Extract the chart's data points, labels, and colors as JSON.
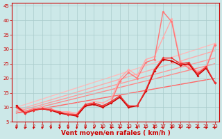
{
  "xlabel": "Vent moyen/en rafales ( km/h )",
  "bg_color": "#cce8e8",
  "grid_color": "#aacccc",
  "xlim": [
    -0.5,
    23.5
  ],
  "ylim": [
    5,
    46
  ],
  "yticks": [
    5,
    10,
    15,
    20,
    25,
    30,
    35,
    40,
    45
  ],
  "xticks": [
    0,
    1,
    2,
    3,
    4,
    5,
    6,
    7,
    8,
    9,
    10,
    11,
    12,
    13,
    14,
    15,
    16,
    17,
    18,
    19,
    20,
    21,
    22,
    23
  ],
  "lines": [
    {
      "x": [
        0,
        23
      ],
      "y": [
        10.0,
        32.0
      ],
      "color": "#ffbbbb",
      "lw": 1.0,
      "marker": null,
      "zorder": 1
    },
    {
      "x": [
        0,
        23
      ],
      "y": [
        9.0,
        29.5
      ],
      "color": "#ffaaaa",
      "lw": 1.0,
      "marker": null,
      "zorder": 1
    },
    {
      "x": [
        0,
        23
      ],
      "y": [
        8.5,
        27.0
      ],
      "color": "#ff9999",
      "lw": 1.0,
      "marker": null,
      "zorder": 1
    },
    {
      "x": [
        0,
        23
      ],
      "y": [
        8.0,
        25.0
      ],
      "color": "#ff8888",
      "lw": 1.0,
      "marker": null,
      "zorder": 1
    },
    {
      "x": [
        0,
        23
      ],
      "y": [
        8.0,
        20.0
      ],
      "color": "#ff6666",
      "lw": 1.0,
      "marker": null,
      "zorder": 1
    },
    {
      "x": [
        0,
        1,
        2,
        3,
        4,
        5,
        6,
        7,
        8,
        9,
        10,
        11,
        12,
        13,
        14,
        15,
        16,
        17,
        18,
        19,
        20,
        21,
        22,
        23
      ],
      "y": [
        10.5,
        8.5,
        9.5,
        10.0,
        9.5,
        8.5,
        8.5,
        8.0,
        11.0,
        12.0,
        11.5,
        13.0,
        20.0,
        23.0,
        21.0,
        26.5,
        27.5,
        34.0,
        40.5,
        26.0,
        24.0,
        22.5,
        24.0,
        32.0
      ],
      "color": "#ffaaaa",
      "lw": 1.0,
      "marker": "D",
      "ms": 2.0,
      "zorder": 3
    },
    {
      "x": [
        0,
        1,
        2,
        3,
        4,
        5,
        6,
        7,
        8,
        9,
        10,
        11,
        12,
        13,
        14,
        15,
        16,
        17,
        18,
        19,
        20,
        21,
        22,
        23
      ],
      "y": [
        10.5,
        8.5,
        9.5,
        9.5,
        9.5,
        8.0,
        8.0,
        7.5,
        10.5,
        11.5,
        10.5,
        12.0,
        19.0,
        22.0,
        20.0,
        25.5,
        26.5,
        43.0,
        39.5,
        25.5,
        23.5,
        22.0,
        23.5,
        31.5
      ],
      "color": "#ff7777",
      "lw": 1.0,
      "marker": "D",
      "ms": 2.0,
      "zorder": 3
    },
    {
      "x": [
        0,
        1,
        2,
        3,
        4,
        5,
        6,
        7,
        8,
        9,
        10,
        11,
        12,
        13,
        14,
        15,
        16,
        17,
        18,
        19,
        20,
        21,
        22,
        23
      ],
      "y": [
        10.5,
        8.0,
        9.0,
        9.5,
        9.0,
        8.0,
        7.5,
        7.0,
        10.5,
        11.0,
        10.0,
        11.5,
        13.5,
        10.0,
        10.5,
        15.5,
        22.5,
        26.5,
        26.0,
        24.5,
        25.0,
        21.0,
        23.5,
        18.5
      ],
      "color": "#cc0000",
      "lw": 1.2,
      "marker": "D",
      "ms": 2.0,
      "zorder": 4
    },
    {
      "x": [
        0,
        1,
        2,
        3,
        4,
        5,
        6,
        7,
        8,
        9,
        10,
        11,
        12,
        13,
        14,
        15,
        16,
        17,
        18,
        19,
        20,
        21,
        22,
        23
      ],
      "y": [
        10.0,
        8.0,
        9.0,
        9.5,
        9.0,
        8.5,
        7.5,
        7.5,
        11.0,
        11.5,
        10.5,
        12.0,
        14.0,
        10.5,
        10.5,
        16.0,
        23.0,
        27.0,
        27.0,
        25.0,
        25.5,
        21.5,
        24.0,
        18.5
      ],
      "color": "#ee3333",
      "lw": 1.0,
      "marker": "D",
      "ms": 2.0,
      "zorder": 4
    }
  ],
  "arrow_color": "#cc0000",
  "tick_color": "#cc0000",
  "label_color": "#cc0000",
  "axis_color": "#cc0000",
  "tick_fontsize": 5.0,
  "xlabel_fontsize": 6.5
}
